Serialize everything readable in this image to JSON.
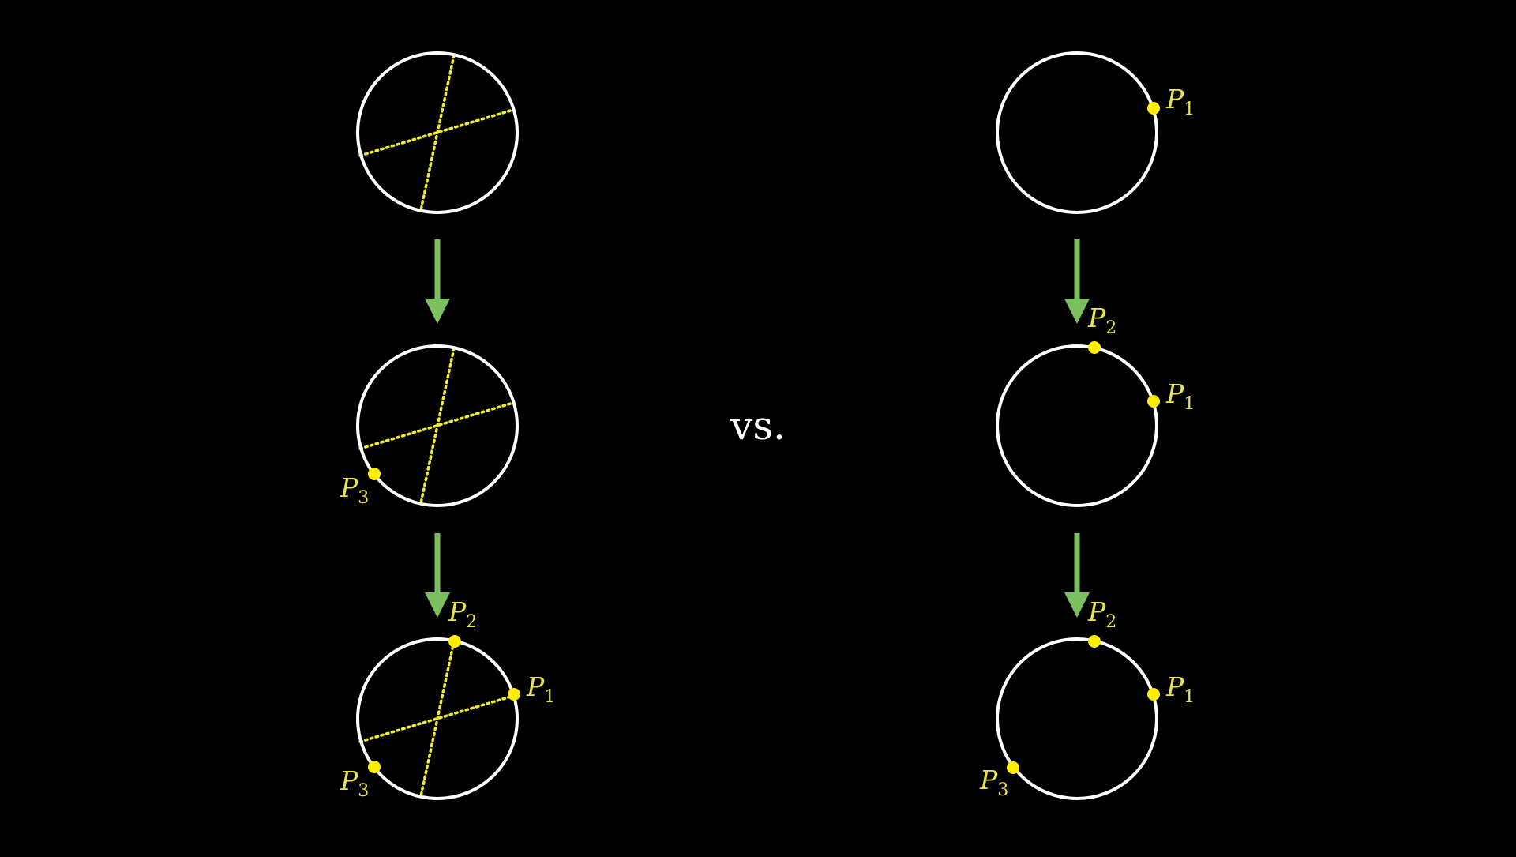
{
  "vs_label": "vs.",
  "point_letter": "P",
  "colors": {
    "background": "#000000",
    "circle": "#ffffff",
    "point": "#ffee00",
    "dotted_line": "#f2ee2a",
    "label": "#eae64a",
    "arrow": "#7bbf5f"
  },
  "left_column": {
    "steps": [
      {
        "points": []
      },
      {
        "points": [
          {
            "subscript": "3"
          }
        ]
      },
      {
        "points": [
          {
            "subscript": "2"
          },
          {
            "subscript": "1"
          },
          {
            "subscript": "3"
          }
        ]
      }
    ]
  },
  "right_column": {
    "steps": [
      {
        "points": [
          {
            "subscript": "1"
          }
        ]
      },
      {
        "points": [
          {
            "subscript": "2"
          },
          {
            "subscript": "1"
          }
        ]
      },
      {
        "points": [
          {
            "subscript": "2"
          },
          {
            "subscript": "1"
          },
          {
            "subscript": "3"
          }
        ]
      }
    ]
  }
}
